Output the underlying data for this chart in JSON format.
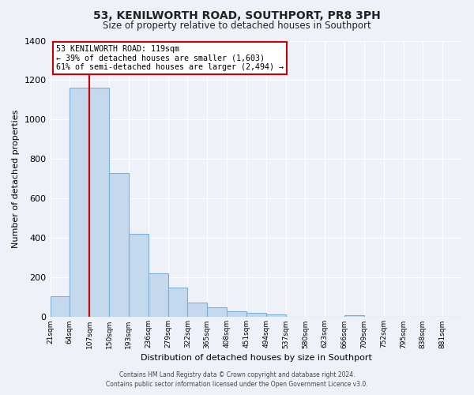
{
  "title": "53, KENILWORTH ROAD, SOUTHPORT, PR8 3PH",
  "subtitle": "Size of property relative to detached houses in Southport",
  "xlabel": "Distribution of detached houses by size in Southport",
  "ylabel": "Number of detached properties",
  "footer_line1": "Contains HM Land Registry data © Crown copyright and database right 2024.",
  "footer_line2": "Contains public sector information licensed under the Open Government Licence v3.0.",
  "bin_labels": [
    "21sqm",
    "64sqm",
    "107sqm",
    "150sqm",
    "193sqm",
    "236sqm",
    "279sqm",
    "322sqm",
    "365sqm",
    "408sqm",
    "451sqm",
    "494sqm",
    "537sqm",
    "580sqm",
    "623sqm",
    "666sqm",
    "709sqm",
    "752sqm",
    "795sqm",
    "838sqm",
    "881sqm"
  ],
  "bar_heights": [
    107,
    1160,
    1160,
    730,
    420,
    220,
    150,
    75,
    50,
    30,
    20,
    15,
    0,
    0,
    0,
    10,
    0,
    0,
    0,
    0,
    0
  ],
  "bar_color": "#c5d9ee",
  "bar_edge_color": "#7bafd4",
  "vline_index": 2,
  "annotation_text_line1": "53 KENILWORTH ROAD: 119sqm",
  "annotation_text_line2": "← 39% of detached houses are smaller (1,603)",
  "annotation_text_line3": "61% of semi-detached houses are larger (2,494) →",
  "annotation_box_color": "#ffffff",
  "annotation_box_edge": "#cc0000",
  "vline_color": "#cc0000",
  "ylim": [
    0,
    1400
  ],
  "yticks": [
    0,
    200,
    400,
    600,
    800,
    1000,
    1200,
    1400
  ],
  "background_color": "#eef2f8",
  "grid_color": "#ffffff",
  "title_fontsize": 10,
  "subtitle_fontsize": 8.5
}
